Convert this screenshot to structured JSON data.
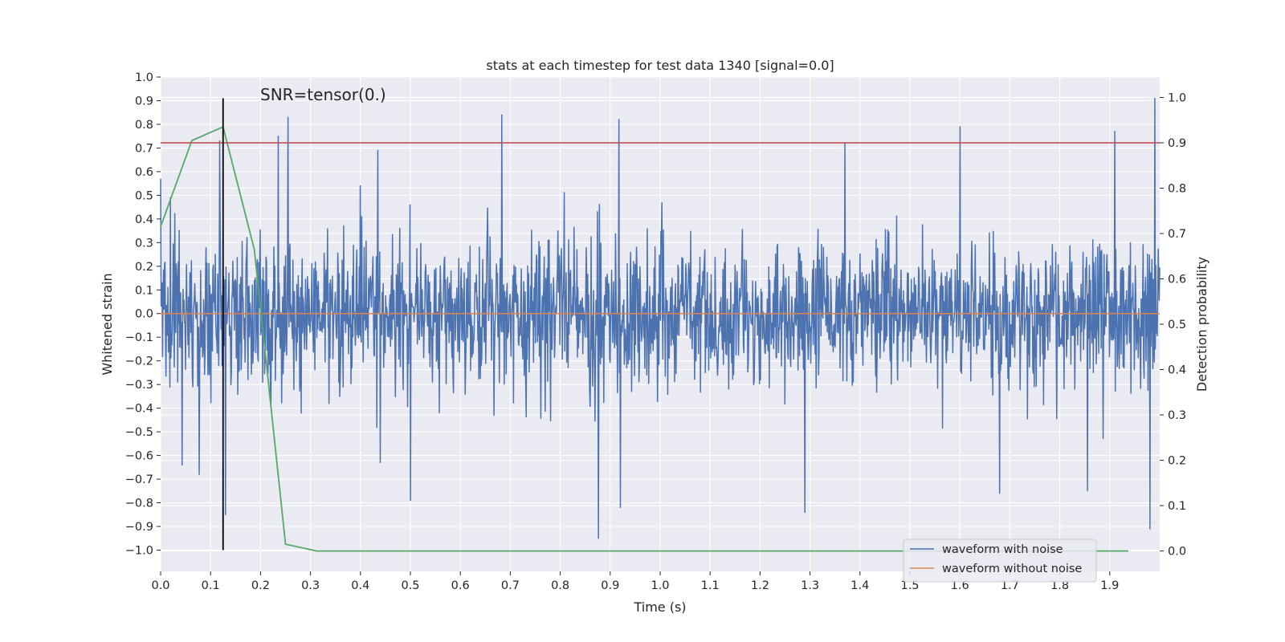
{
  "chart_data": {
    "type": "line",
    "title": "stats at each timestep for test data 1340 [signal=0.0]",
    "xlabel": "Time (s)",
    "ylabel": "Whitened strain",
    "y2label": "Detection probability",
    "xlim": [
      0,
      2
    ],
    "ylim": [
      -1.09,
      1.0
    ],
    "y2lim": [
      -0.045,
      1.045
    ],
    "x_ticks": [
      0.0,
      0.1,
      0.2,
      0.3,
      0.4,
      0.5,
      0.6,
      0.7,
      0.8,
      0.9,
      1.0,
      1.1,
      1.2,
      1.3,
      1.4,
      1.5,
      1.6,
      1.7,
      1.8,
      1.9
    ],
    "x_tick_labels": [
      "0.0",
      "0.1",
      "0.2",
      "0.3",
      "0.4",
      "0.5",
      "0.6",
      "0.7",
      "0.8",
      "0.9",
      "1.0",
      "1.1",
      "1.2",
      "1.3",
      "1.4",
      "1.5",
      "1.6",
      "1.7",
      "1.8",
      "1.9"
    ],
    "y_ticks": [
      1.0,
      0.9,
      0.8,
      0.7,
      0.6,
      0.5,
      0.4,
      0.3,
      0.2,
      0.1,
      0.0,
      -0.1,
      -0.2,
      -0.3,
      -0.4,
      -0.5,
      -0.6,
      -0.7,
      -0.8,
      -0.9,
      -1.0
    ],
    "y_tick_labels": [
      "1.0",
      "0.9",
      "0.8",
      "0.7",
      "0.6",
      "0.5",
      "0.4",
      "0.3",
      "0.2",
      "0.1",
      "0.0",
      "−0.1",
      "−0.2",
      "−0.3",
      "−0.4",
      "−0.5",
      "−0.6",
      "−0.7",
      "−0.8",
      "−0.9",
      "−1.0"
    ],
    "y2_ticks": [
      1.0,
      0.9,
      0.8,
      0.7,
      0.6,
      0.5,
      0.4,
      0.3,
      0.2,
      0.1,
      0.0
    ],
    "y2_tick_labels": [
      "1.0",
      "0.9",
      "0.8",
      "0.7",
      "0.6",
      "0.5",
      "0.4",
      "0.3",
      "0.2",
      "0.1",
      "0.0"
    ],
    "grid": true,
    "legend_position": "bottom-right",
    "annotation": "SNR=tensor(0.)",
    "series": [
      {
        "name": "waveform with noise",
        "color": "#4c72b0",
        "axis": "left",
        "x_start": 0.0,
        "x_end": 2.0,
        "amplitude_range": [
          -0.95,
          0.91
        ],
        "peaks": [
          {
            "x": 0.0,
            "y": 0.57
          },
          {
            "x": 0.02,
            "y": 0.49
          },
          {
            "x": 0.043,
            "y": -0.64
          },
          {
            "x": 0.077,
            "y": -0.68
          },
          {
            "x": 0.118,
            "y": 0.73
          },
          {
            "x": 0.13,
            "y": -0.85
          },
          {
            "x": 0.235,
            "y": 0.75
          },
          {
            "x": 0.255,
            "y": 0.83
          },
          {
            "x": 0.435,
            "y": 0.69
          },
          {
            "x": 0.44,
            "y": -0.63
          },
          {
            "x": 0.5,
            "y": -0.79
          },
          {
            "x": 0.683,
            "y": 0.84
          },
          {
            "x": 0.876,
            "y": -0.95
          },
          {
            "x": 0.917,
            "y": 0.82
          },
          {
            "x": 0.92,
            "y": -0.82
          },
          {
            "x": 1.29,
            "y": -0.84
          },
          {
            "x": 1.37,
            "y": 0.72
          },
          {
            "x": 1.6,
            "y": 0.79
          },
          {
            "x": 1.68,
            "y": -0.76
          },
          {
            "x": 1.855,
            "y": -0.75
          },
          {
            "x": 1.91,
            "y": 0.77
          },
          {
            "x": 1.98,
            "y": -0.91
          },
          {
            "x": 1.99,
            "y": 0.91
          }
        ]
      },
      {
        "name": "waveform without noise",
        "color": "#dd8452",
        "axis": "left",
        "x": [
          0.0,
          2.0
        ],
        "y": [
          0.0,
          0.0
        ]
      },
      {
        "name": "",
        "color": "#55a868",
        "axis": "right",
        "x": [
          0.0,
          0.0625,
          0.125,
          0.1875,
          0.25,
          0.3125,
          0.375,
          0.4375,
          0.5,
          0.5625,
          0.625,
          0.6875,
          0.75,
          0.8125,
          0.875,
          0.9375,
          1.0,
          1.0625,
          1.125,
          1.1875,
          1.25,
          1.3125,
          1.375,
          1.4375,
          1.5,
          1.5625,
          1.625,
          1.6875,
          1.75,
          1.8125,
          1.875,
          1.9375
        ],
        "y": [
          0.715,
          0.905,
          0.935,
          0.665,
          0.015,
          0.0,
          0.0,
          0.0,
          0.0,
          0.0,
          0.0,
          0.0,
          0.0,
          0.0,
          0.0,
          0.0,
          0.0,
          0.0,
          0.0,
          0.0,
          0.0,
          0.0,
          0.0,
          0.0,
          0.0,
          0.0,
          0.0,
          0.0,
          0.0,
          0.0,
          0.0,
          0.0
        ]
      }
    ],
    "hlines": [
      {
        "y": 0.9,
        "axis": "right",
        "color": "#c44e52"
      }
    ],
    "vlines": [
      {
        "x": 0.125,
        "y_from": -1.0,
        "y_to": 0.91,
        "color": "#000000"
      }
    ]
  }
}
